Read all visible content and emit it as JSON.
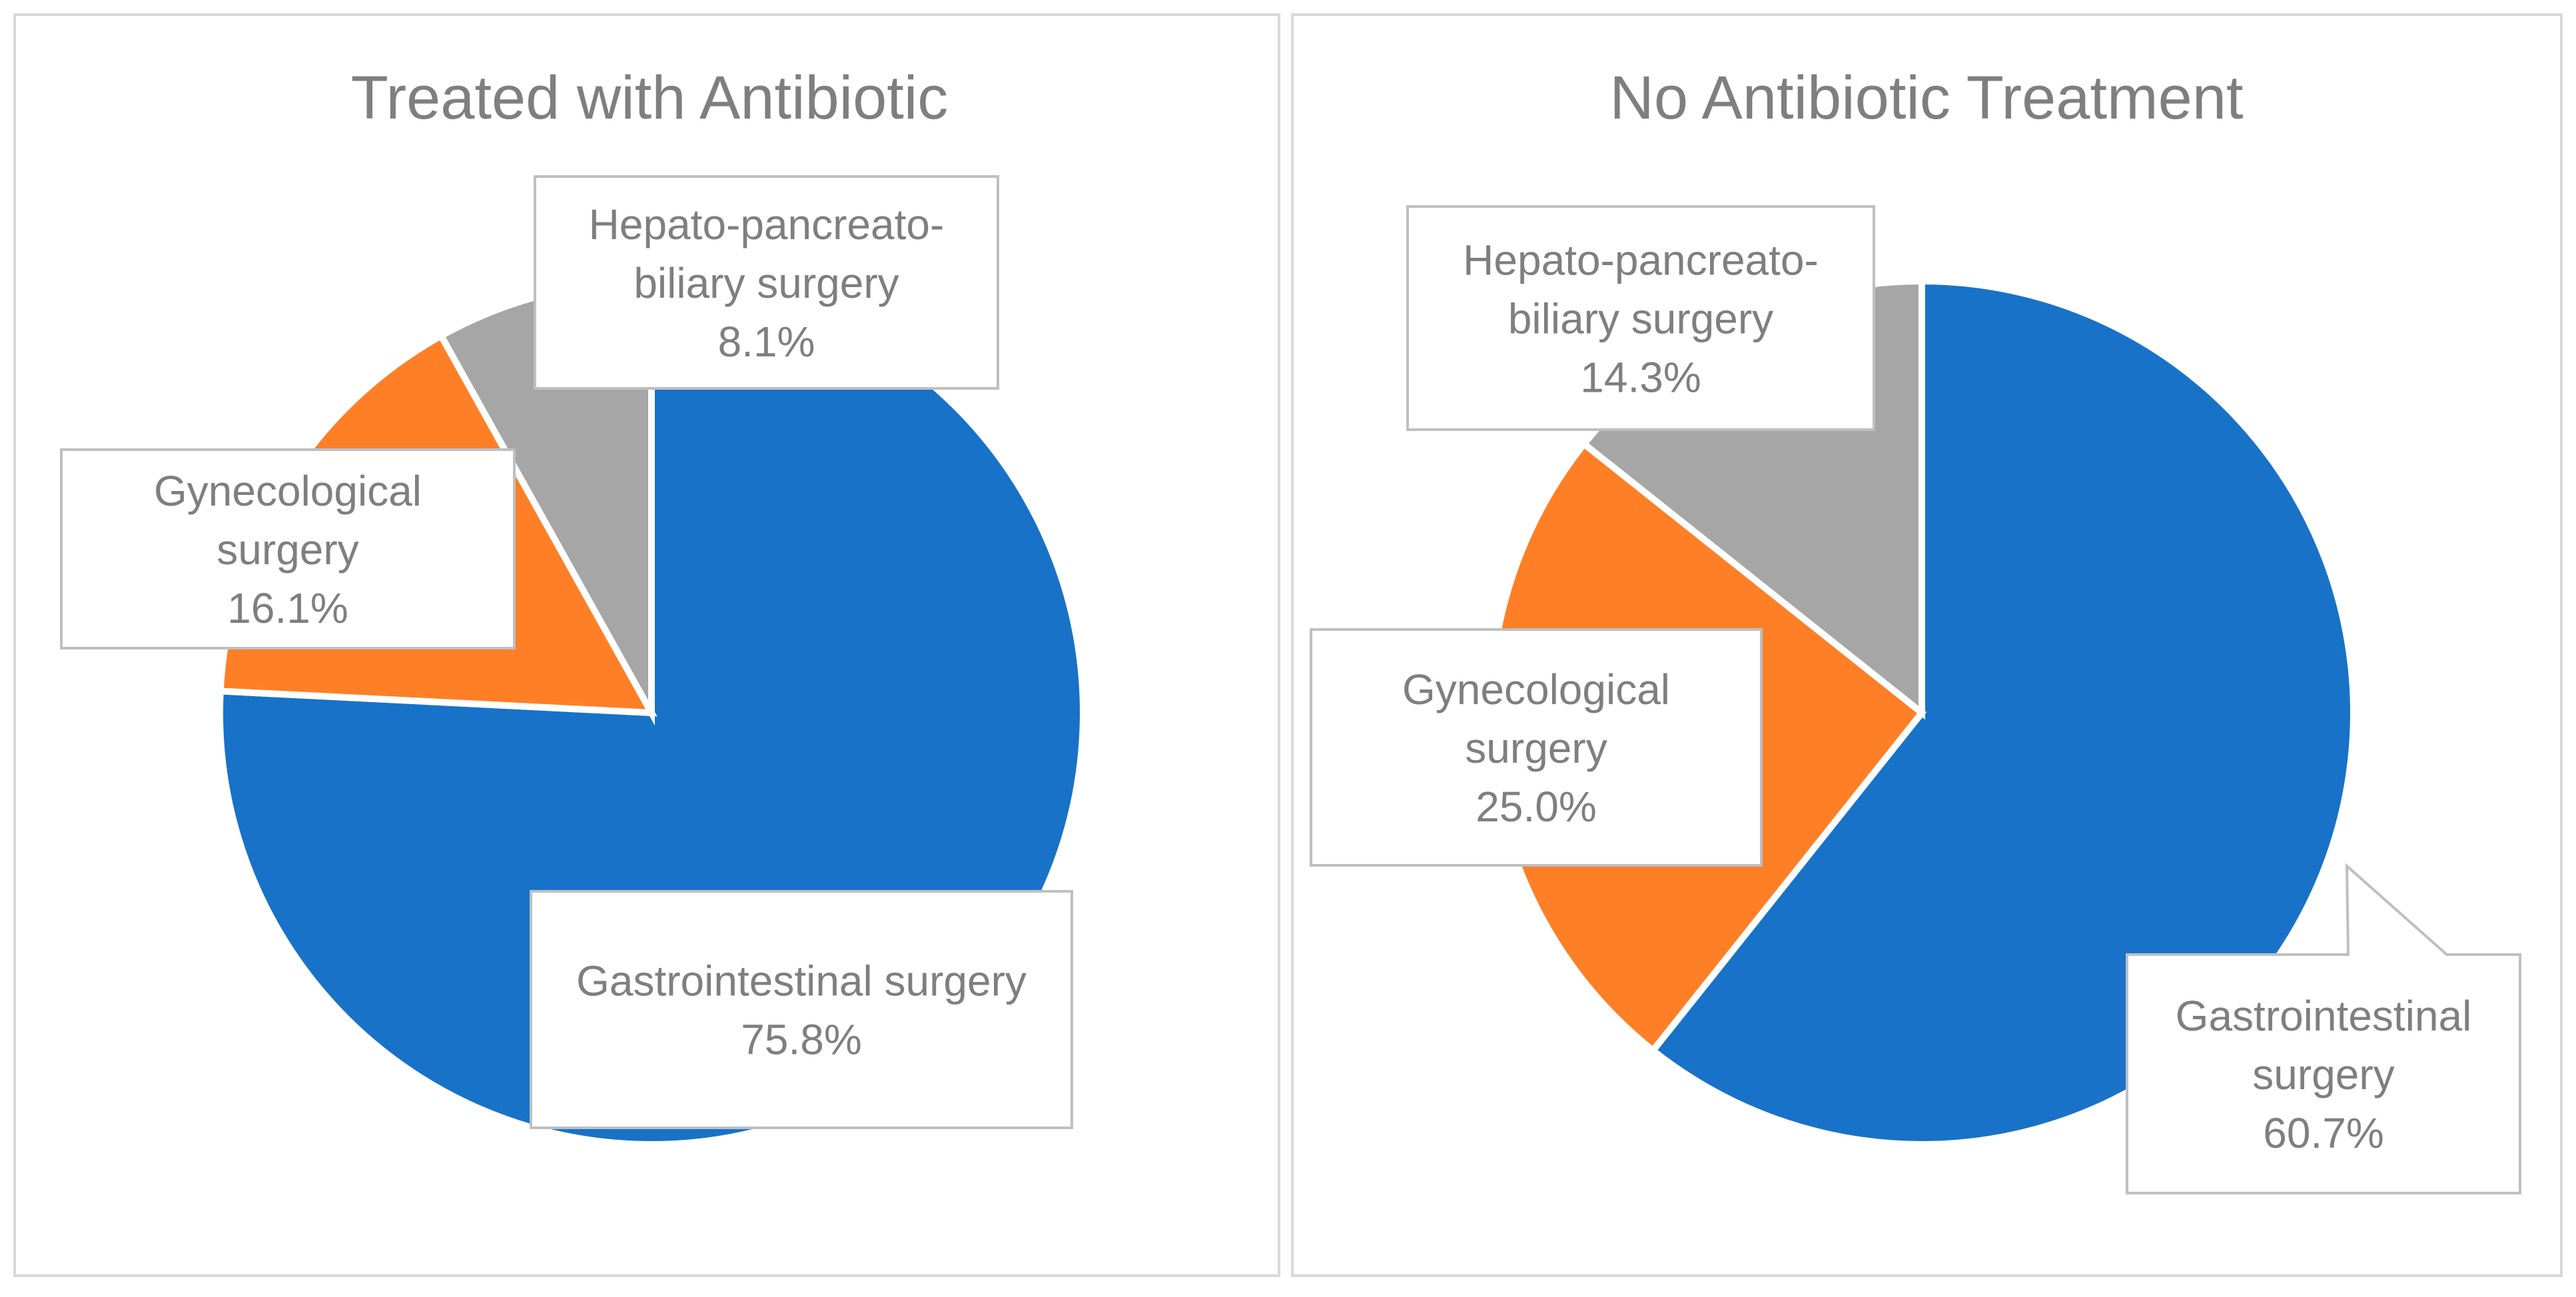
{
  "chart_data": [
    {
      "type": "pie",
      "title": "Treated with Antibiotic",
      "categories": [
        "Gastrointestinal surgery",
        "Gynecological surgery",
        "Hepato-pancreato-biliary surgery"
      ],
      "values": [
        75.8,
        16.1,
        8.1
      ],
      "colors": [
        "#1872c8",
        "#ff7f27",
        "#a6a6a6"
      ],
      "labels": [
        {
          "lines": [
            "Gastrointestinal surgery"
          ],
          "pct": "75.8%"
        },
        {
          "lines": [
            "Gynecological",
            "surgery"
          ],
          "pct": "16.1%"
        },
        {
          "lines": [
            "Hepato-pancreato-",
            "biliary surgery"
          ],
          "pct": "8.1%"
        }
      ]
    },
    {
      "type": "pie",
      "title": "No Antibiotic Treatment",
      "categories": [
        "Gastrointestinal surgery",
        "Gynecological surgery",
        "Hepato-pancreato-biliary surgery"
      ],
      "values": [
        60.7,
        25.0,
        14.3
      ],
      "colors": [
        "#1872c8",
        "#ff7f27",
        "#a6a6a6"
      ],
      "labels": [
        {
          "lines": [
            "Gastrointestinal",
            "surgery"
          ],
          "pct": "60.7%"
        },
        {
          "lines": [
            "Gynecological",
            "surgery"
          ],
          "pct": "25.0%"
        },
        {
          "lines": [
            "Hepato-pancreato-",
            "biliary surgery"
          ],
          "pct": "14.3%"
        }
      ]
    }
  ]
}
